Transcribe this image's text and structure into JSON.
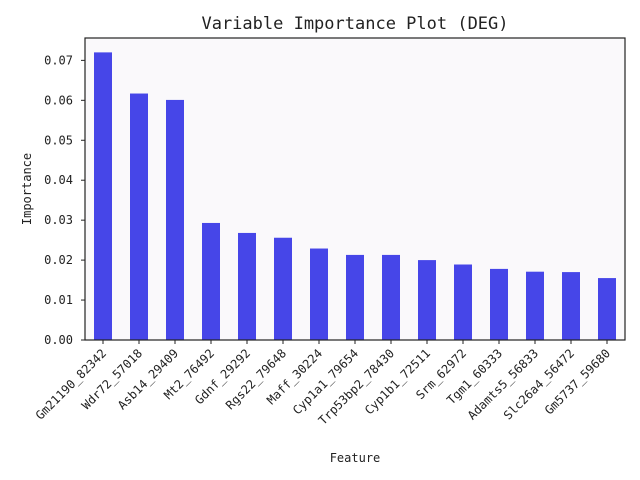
{
  "chart_data": {
    "type": "bar",
    "title": "Variable Importance Plot (DEG)",
    "xlabel": "Feature",
    "ylabel": "Importance",
    "categories": [
      "Gm21190_82342",
      "Wdr72_57018",
      "Asb14_29409",
      "Mt2_76492",
      "Gdnf_29292",
      "Rgs22_79648",
      "Maff_30224",
      "Cyp1a1_79654",
      "Trp53bp2_78430",
      "Cyp1b1_72511",
      "Srm_62972",
      "Tgm1_60333",
      "Adamts5_56833",
      "Slc26a4_56472",
      "Gm5737_59680"
    ],
    "values": [
      0.072,
      0.0617,
      0.0601,
      0.0293,
      0.0268,
      0.0256,
      0.0229,
      0.0213,
      0.0213,
      0.02,
      0.0189,
      0.0178,
      0.0171,
      0.017,
      0.0155
    ],
    "ylim": [
      0,
      0.0756
    ],
    "yticks": [
      0.0,
      0.01,
      0.02,
      0.03,
      0.04,
      0.05,
      0.06,
      0.07
    ],
    "ytick_labels": [
      "0.00",
      "0.01",
      "0.02",
      "0.03",
      "0.04",
      "0.05",
      "0.06",
      "0.07"
    ],
    "grid": false,
    "legend": "none",
    "colors": {
      "bar": "#4646e8",
      "plot_background": "#faf9fb",
      "axis": "#222222"
    }
  }
}
